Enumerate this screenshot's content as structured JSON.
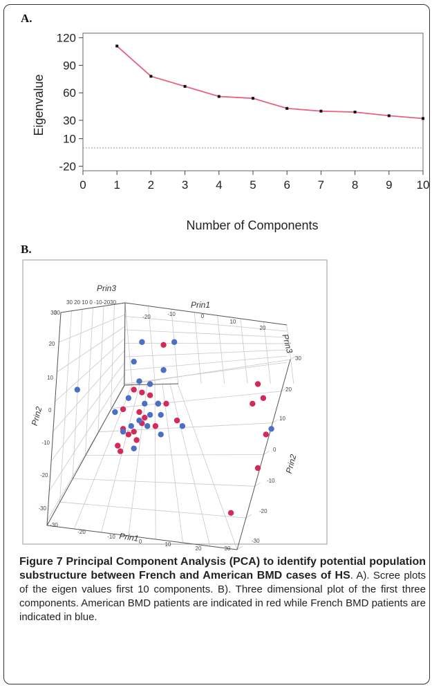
{
  "panels": {
    "a_label": "A.",
    "b_label": "B."
  },
  "chart_data": [
    {
      "type": "line",
      "title": "",
      "xlabel": "Number of Components",
      "ylabel": "Eigenvalue",
      "x": [
        1,
        2,
        3,
        4,
        5,
        6,
        7,
        8,
        9,
        10
      ],
      "series": [
        {
          "values": [
            111,
            78,
            67,
            56,
            54,
            43,
            40,
            39,
            35,
            32
          ]
        }
      ],
      "xticks": [
        "0",
        "1",
        "2",
        "3",
        "4",
        "5",
        "6",
        "7",
        "8",
        "9",
        "10"
      ],
      "yticks": [
        "120",
        "90",
        "60",
        "30",
        "10",
        "-20"
      ],
      "xlim": [
        0,
        10
      ],
      "ylim": [
        -25,
        125
      ],
      "reference_line": 0,
      "line_color": "#e8607e",
      "grid": false
    },
    {
      "type": "scatter",
      "dimensions": 3,
      "axis_titles": {
        "prin1_top": "Prin1",
        "prin1_bottom": "Prin1",
        "prin2_left": "Prin2",
        "prin2_right": "Prin2",
        "prin3_topleft": "Prin3",
        "prin3_topright": "Prin3"
      },
      "tick_labels": {
        "prin3_top": "30 20 10 0 -10-2030",
        "prin1_top": [
          "-20",
          "-10",
          "0",
          "10",
          "20"
        ],
        "prin2_left": [
          "30",
          "20",
          "10",
          "0",
          "-10",
          "-20",
          "-30"
        ],
        "bottom_left": [
          "-30",
          "-20",
          "-10",
          "0",
          "10",
          "20",
          "30"
        ],
        "right": [
          "30",
          "20",
          "10",
          "0",
          "-10",
          "-20",
          "-30"
        ],
        "corner": "30"
      },
      "series": [
        {
          "color": "#d42a5a",
          "points": [
            [
              -6,
              24
            ],
            [
              -17,
              8
            ],
            [
              -14,
              7
            ],
            [
              -11,
              6
            ],
            [
              -5,
              3
            ],
            [
              -8,
              3
            ],
            [
              -21,
              1
            ],
            [
              -15,
              0
            ],
            [
              -13,
              -2
            ],
            [
              -1,
              -3
            ],
            [
              -14,
              -4
            ],
            [
              -9,
              -5
            ],
            [
              -21,
              -6
            ],
            [
              -17,
              -7
            ],
            [
              -16,
              -10
            ],
            [
              -19,
              -8
            ],
            [
              -23,
              -12
            ],
            [
              -22,
              -14
            ],
            [
              29,
              10
            ],
            [
              31,
              5
            ],
            [
              27,
              3
            ],
            [
              32,
              -8
            ],
            [
              29,
              -20
            ],
            [
              19,
              -36
            ]
          ]
        },
        {
          "color": "#4a6fc4",
          "points": [
            [
              -17,
              18
            ],
            [
              -2,
              25
            ],
            [
              -14,
              25
            ],
            [
              -6,
              15
            ],
            [
              -15,
              11
            ],
            [
              -11,
              10
            ],
            [
              -38,
              8
            ],
            [
              -19,
              5
            ],
            [
              -13,
              3
            ],
            [
              -8,
              3
            ],
            [
              -24,
              0
            ],
            [
              -11,
              -1
            ],
            [
              -7,
              -1
            ],
            [
              -15,
              -3
            ],
            [
              -12,
              -5
            ],
            [
              -18,
              -5
            ],
            [
              -21,
              -7
            ],
            [
              -17,
              -13
            ],
            [
              -7,
              -8
            ],
            [
              1,
              -5
            ],
            [
              34,
              -6
            ]
          ]
        }
      ],
      "point_colors_legend": {
        "red": "American BMD patients",
        "blue": "French BMD patients"
      }
    }
  ],
  "caption": {
    "title": "Figure 7 Principal Component Analysis (PCA) to identify potential population substructure between French and American BMD cases of HS",
    "body": ". A). Scree plots of the eigen values first 10 components. B). Three dimensional plot of the first three components. American BMD patients are indicated in red while French BMD patients are indicated in blue."
  }
}
